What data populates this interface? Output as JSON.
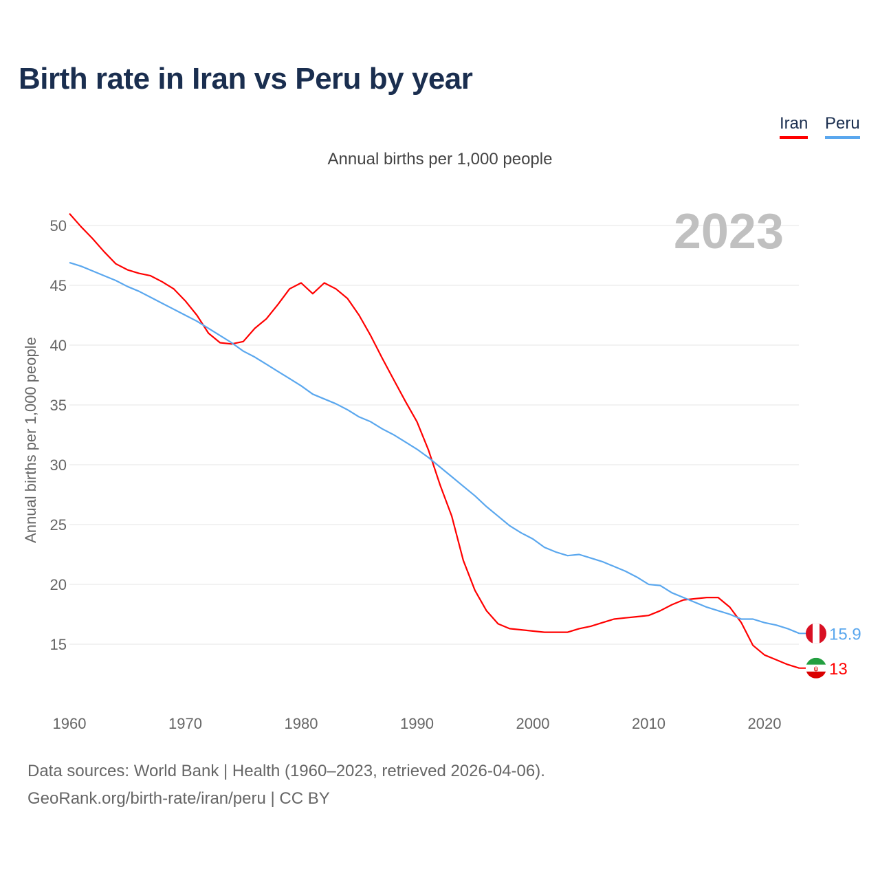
{
  "title": "Birth rate in Iran vs Peru by year",
  "legend": [
    {
      "name": "Iran",
      "color": "#ff0000"
    },
    {
      "name": "Peru",
      "color": "#5aa7ee"
    }
  ],
  "footer": {
    "line1": "Data sources: World Bank | Health (1960–2023, retrieved 2026-04-06).",
    "line2": "GeoRank.org/birth-rate/iran/peru | CC BY"
  },
  "chart_data": {
    "type": "line",
    "title": "Birth rate in Iran vs Peru by year",
    "subtitle": "Annual births per 1,000 people",
    "ylabel": "Annual births per 1,000 people",
    "xlabel": "",
    "year_watermark": "2023",
    "xlim": [
      1960,
      2023
    ],
    "ylim": [
      10.5,
      52
    ],
    "xticks": [
      1960,
      1970,
      1980,
      1990,
      2000,
      2010,
      2020
    ],
    "yticks": [
      15,
      20,
      25,
      30,
      35,
      40,
      45,
      50
    ],
    "grid": true,
    "legend_position": "top-right",
    "x": [
      1960,
      1961,
      1962,
      1963,
      1964,
      1965,
      1966,
      1967,
      1968,
      1969,
      1970,
      1971,
      1972,
      1973,
      1974,
      1975,
      1976,
      1977,
      1978,
      1979,
      1980,
      1981,
      1982,
      1983,
      1984,
      1985,
      1986,
      1987,
      1988,
      1989,
      1990,
      1991,
      1992,
      1993,
      1994,
      1995,
      1996,
      1997,
      1998,
      1999,
      2000,
      2001,
      2002,
      2003,
      2004,
      2005,
      2006,
      2007,
      2008,
      2009,
      2010,
      2011,
      2012,
      2013,
      2014,
      2015,
      2016,
      2017,
      2018,
      2019,
      2020,
      2021,
      2022,
      2023
    ],
    "series": [
      {
        "name": "Iran",
        "color": "#ff0000",
        "end_label": "13",
        "flag": "iran-flag-icon",
        "values": [
          51.0,
          49.9,
          48.9,
          47.8,
          46.8,
          46.3,
          46.0,
          45.8,
          45.3,
          44.7,
          43.7,
          42.5,
          41.0,
          40.2,
          40.1,
          40.3,
          41.4,
          42.2,
          43.4,
          44.7,
          45.2,
          44.3,
          45.2,
          44.7,
          43.9,
          42.5,
          40.8,
          38.9,
          37.1,
          35.3,
          33.6,
          31.2,
          28.3,
          25.7,
          22.0,
          19.5,
          17.8,
          16.7,
          16.3,
          16.2,
          16.1,
          16.0,
          16.0,
          16.0,
          16.3,
          16.5,
          16.8,
          17.1,
          17.2,
          17.3,
          17.4,
          17.8,
          18.3,
          18.7,
          18.8,
          18.9,
          18.9,
          18.1,
          16.8,
          14.9,
          14.1,
          13.7,
          13.3,
          13.0
        ]
      },
      {
        "name": "Peru",
        "color": "#5aa7ee",
        "end_label": "15.9",
        "flag": "peru-flag-icon",
        "values": [
          46.9,
          46.6,
          46.2,
          45.8,
          45.4,
          44.9,
          44.5,
          44.0,
          43.5,
          43.0,
          42.5,
          42.0,
          41.4,
          40.8,
          40.2,
          39.5,
          39.0,
          38.4,
          37.8,
          37.2,
          36.6,
          35.9,
          35.5,
          35.1,
          34.6,
          34.0,
          33.6,
          33.0,
          32.5,
          31.9,
          31.3,
          30.6,
          29.8,
          29.0,
          28.2,
          27.4,
          26.5,
          25.7,
          24.9,
          24.3,
          23.8,
          23.1,
          22.7,
          22.4,
          22.5,
          22.2,
          21.9,
          21.5,
          21.1,
          20.6,
          20.0,
          19.9,
          19.3,
          18.9,
          18.5,
          18.1,
          17.8,
          17.5,
          17.1,
          17.1,
          16.8,
          16.6,
          16.3,
          15.9
        ]
      }
    ]
  }
}
